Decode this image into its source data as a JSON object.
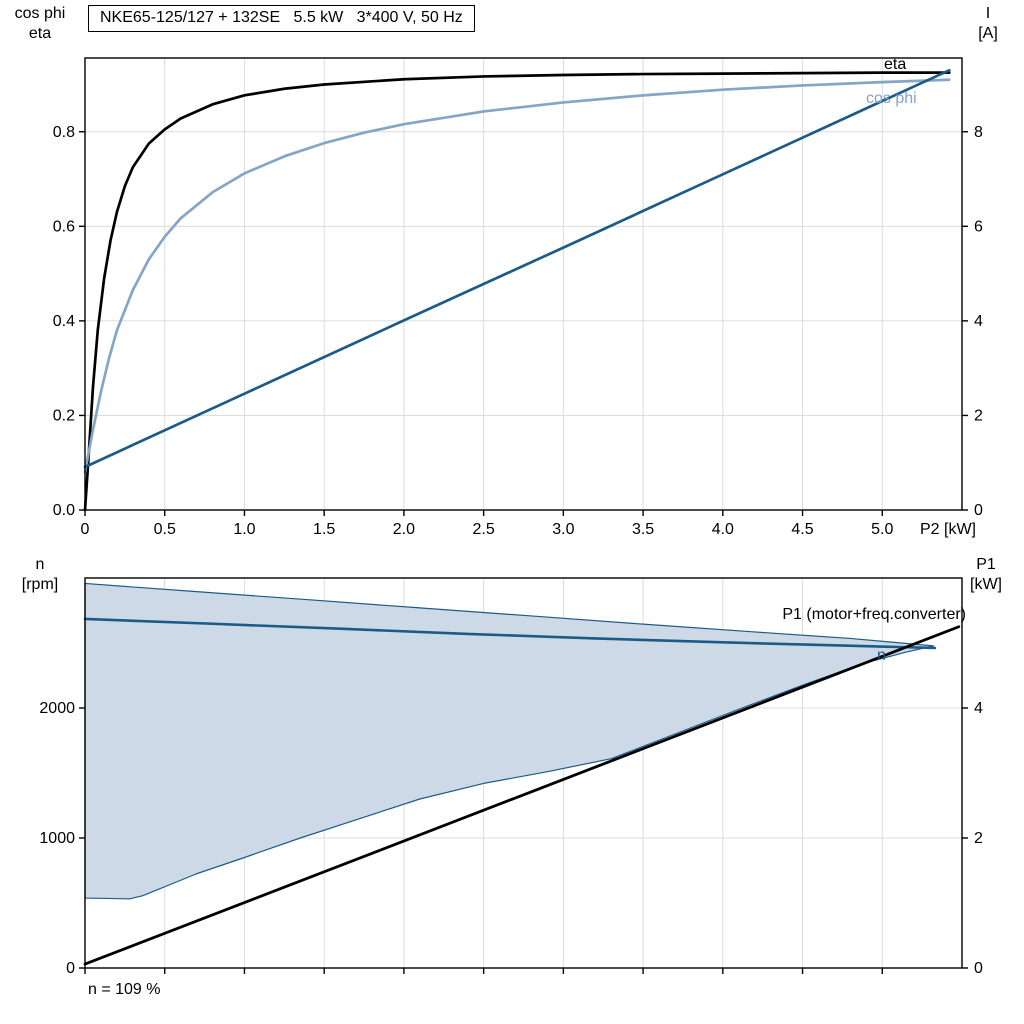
{
  "colors": {
    "black": "#000000",
    "dark_blue": "#1c5b87",
    "light_blue": "#84a5c5",
    "fill_blue": "#cdd9e6",
    "grid": "#dcdcdc"
  },
  "title_box": {
    "text": "NKE65-125/127 + 132SE   5.5 kW   3*400 V, 50 Hz"
  },
  "chart_data": [
    {
      "id": "top",
      "type": "line",
      "title": "NKE65-125/127 + 132SE   5.5 kW   3*400 V, 50 Hz",
      "x": {
        "min": 0,
        "max": 5.5,
        "ticks": [
          0,
          0.5,
          1.0,
          1.5,
          2.0,
          2.5,
          3.0,
          3.5,
          4.0,
          4.5,
          5.0
        ],
        "tick_labels": [
          "0",
          "0.5",
          "1.0",
          "1.5",
          "2.0",
          "2.5",
          "3.0",
          "3.5",
          "4.0",
          "4.5",
          "5.0"
        ],
        "end_label": "P2 [kW]"
      },
      "y_left": {
        "label": [
          "cos phi",
          "eta"
        ],
        "min": 0,
        "max": 0.956,
        "ticks": [
          0,
          0.2,
          0.4,
          0.6,
          0.8
        ],
        "tick_labels": [
          "0.0",
          "0.2",
          "0.4",
          "0.6",
          "0.8"
        ]
      },
      "y_right": {
        "label": [
          "I",
          "[A]"
        ],
        "min": 0,
        "max": 9.56,
        "ticks": [
          0,
          2,
          4,
          6,
          8
        ],
        "tick_labels": [
          "0",
          "2",
          "4",
          "6",
          "8"
        ]
      },
      "series": [
        {
          "name": "eta",
          "label": "eta",
          "axis": "left",
          "color": "black",
          "width": 2.7,
          "points": [
            [
              0,
              0
            ],
            [
              0.02,
              0.1
            ],
            [
              0.05,
              0.26
            ],
            [
              0.08,
              0.38
            ],
            [
              0.12,
              0.49
            ],
            [
              0.16,
              0.57
            ],
            [
              0.2,
              0.63
            ],
            [
              0.25,
              0.685
            ],
            [
              0.3,
              0.725
            ],
            [
              0.4,
              0.775
            ],
            [
              0.5,
              0.805
            ],
            [
              0.6,
              0.828
            ],
            [
              0.8,
              0.858
            ],
            [
              1.0,
              0.877
            ],
            [
              1.25,
              0.891
            ],
            [
              1.5,
              0.9
            ],
            [
              2.0,
              0.911
            ],
            [
              2.5,
              0.917
            ],
            [
              3.0,
              0.92
            ],
            [
              3.5,
              0.922
            ],
            [
              4.0,
              0.923
            ],
            [
              4.5,
              0.924
            ],
            [
              5.0,
              0.925
            ],
            [
              5.42,
              0.925
            ]
          ]
        },
        {
          "name": "cos-phi",
          "label": "cos phi",
          "axis": "left",
          "color": "light_blue",
          "width": 2.7,
          "points": [
            [
              0,
              0.08
            ],
            [
              0.05,
              0.17
            ],
            [
              0.1,
              0.25
            ],
            [
              0.15,
              0.32
            ],
            [
              0.2,
              0.38
            ],
            [
              0.3,
              0.465
            ],
            [
              0.4,
              0.53
            ],
            [
              0.5,
              0.578
            ],
            [
              0.6,
              0.617
            ],
            [
              0.8,
              0.672
            ],
            [
              1.0,
              0.712
            ],
            [
              1.25,
              0.748
            ],
            [
              1.5,
              0.776
            ],
            [
              1.75,
              0.798
            ],
            [
              2.0,
              0.816
            ],
            [
              2.5,
              0.843
            ],
            [
              3.0,
              0.862
            ],
            [
              3.5,
              0.877
            ],
            [
              4.0,
              0.889
            ],
            [
              4.5,
              0.898
            ],
            [
              5.0,
              0.905
            ],
            [
              5.42,
              0.91
            ]
          ]
        },
        {
          "name": "current",
          "label": "I",
          "axis": "right",
          "color": "dark_blue",
          "width": 2.7,
          "points": [
            [
              0,
              0.91
            ],
            [
              1,
              2.46
            ],
            [
              2,
              4.01
            ],
            [
              3,
              5.55
            ],
            [
              4,
              7.1
            ],
            [
              5,
              8.65
            ],
            [
              5.42,
              9.3
            ]
          ]
        }
      ]
    },
    {
      "id": "bottom",
      "type": "line",
      "x": {
        "min": 0,
        "max": 5.5,
        "ticks": [
          0,
          0.5,
          1.0,
          1.5,
          2.0,
          2.5,
          3.0,
          3.5,
          4.0,
          4.5,
          5.0
        ],
        "tick_labels": []
      },
      "y_left": {
        "label": [
          "n",
          "[rpm]"
        ],
        "min": 0,
        "max": 3000,
        "ticks": [
          0,
          1000,
          2000
        ],
        "tick_labels": [
          "0",
          "1000",
          "2000"
        ]
      },
      "y_right": {
        "label": [
          "P1",
          "[kW]"
        ],
        "min": 0,
        "max": 6,
        "ticks": [
          0,
          2,
          4
        ],
        "tick_labels": [
          "0",
          "2",
          "4"
        ]
      },
      "area": {
        "name": "speed-range-envelope",
        "fill": "fill_blue",
        "stroke": "dark_blue",
        "upper": [
          [
            0,
            2958
          ],
          [
            0.7,
            2895
          ],
          [
            1.4,
            2833
          ],
          [
            2.1,
            2770
          ],
          [
            2.8,
            2708
          ],
          [
            3.5,
            2645
          ],
          [
            4.2,
            2585
          ],
          [
            4.8,
            2535
          ],
          [
            5.32,
            2478
          ]
        ],
        "lower": [
          [
            0,
            538
          ],
          [
            0.28,
            532
          ],
          [
            0.36,
            555
          ],
          [
            0.5,
            625
          ],
          [
            0.7,
            725
          ],
          [
            1.0,
            850
          ],
          [
            1.35,
            1000
          ],
          [
            1.7,
            1140
          ],
          [
            2.1,
            1300
          ],
          [
            2.5,
            1420
          ],
          [
            2.9,
            1510
          ],
          [
            3.3,
            1610
          ],
          [
            3.7,
            1800
          ],
          [
            4.1,
            1990
          ],
          [
            4.5,
            2175
          ],
          [
            4.9,
            2350
          ],
          [
            5.15,
            2430
          ],
          [
            5.32,
            2478
          ]
        ]
      },
      "series": [
        {
          "name": "speed",
          "label": "n",
          "axis": "left",
          "color": "dark_blue",
          "width": 2.6,
          "points": [
            [
              0,
              2685
            ],
            [
              0.8,
              2648
            ],
            [
              1.6,
              2610
            ],
            [
              2.4,
              2570
            ],
            [
              3.2,
              2535
            ],
            [
              4.0,
              2505
            ],
            [
              4.7,
              2482
            ],
            [
              5.33,
              2462
            ]
          ]
        },
        {
          "name": "p1-input-power",
          "label": "P1 (motor+freq.converter)",
          "axis": "right",
          "color": "black",
          "width": 2.8,
          "points": [
            [
              0,
              0.06
            ],
            [
              2.7,
              2.617
            ],
            [
              5.48,
              5.25
            ]
          ]
        }
      ],
      "footnote": "n = 109 %"
    }
  ]
}
